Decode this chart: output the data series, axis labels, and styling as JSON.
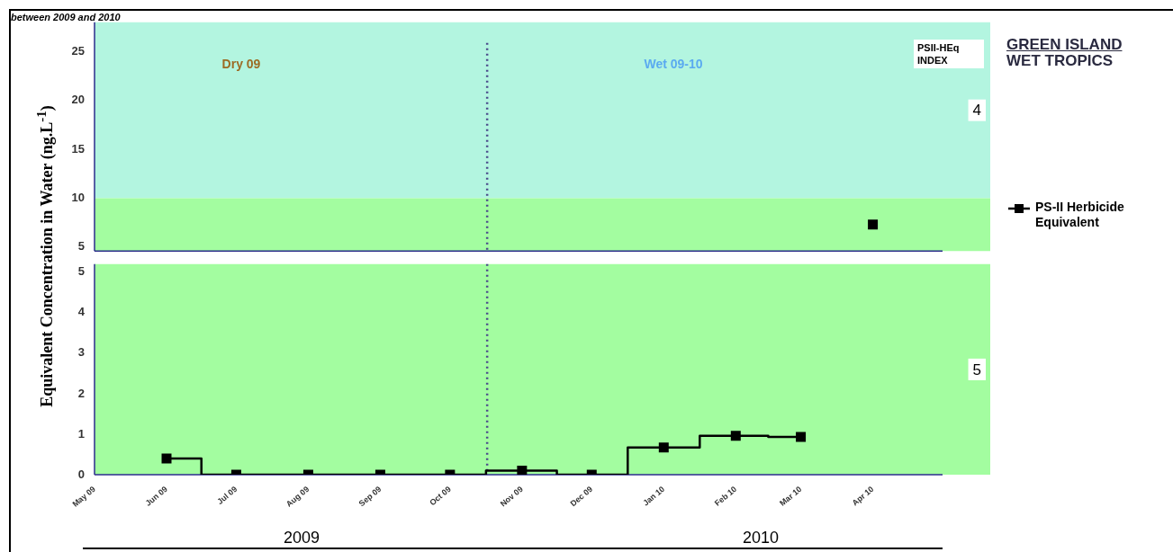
{
  "chart_data": [
    {
      "type": "step",
      "legend": "right",
      "tick_labels": "y",
      "marker": "square",
      "grid": false,
      "series": [
        {
          "name": "PS-II Herbicide Equivalent",
          "color": "#000000",
          "x": [
            "2010-04"
          ],
          "values": [
            7.3
          ]
        }
      ],
      "xlim": [
        "2009-05",
        "2010-05"
      ],
      "ylim": [
        4.6,
        28
      ],
      "yticks": [
        5,
        10,
        15,
        20,
        25
      ],
      "bands": [
        {
          "axis": "y",
          "from": 10,
          "to": 28,
          "label": "4",
          "color": "#b3f5e0"
        },
        {
          "axis": "y",
          "from": 4.6,
          "to": 10,
          "label": null,
          "color": "#a3fda0"
        }
      ],
      "ref_lines": [
        {
          "axis": "x",
          "value": "2009-10-17",
          "label": null,
          "color": "#4a4a8a",
          "line_style": "dotted"
        }
      ],
      "annotations": [
        "Dry 09",
        "Wet 09-10",
        "PSII-HEq INDEX",
        "between 2009 and 2010",
        "GREEN ISLAND",
        "WET TROPICS"
      ]
    },
    {
      "type": "step",
      "ylabel": "Equivalent Concentration in Water (ng.L$^{-1}$)",
      "marker": "square",
      "grid": false,
      "x": [
        "2009-06",
        "2009-07",
        "2009-08",
        "2009-09",
        "2009-10",
        "2009-11",
        "2009-12",
        "2010-01",
        "2010-02",
        "2010-03"
      ],
      "series": [
        {
          "color": "#000000",
          "values": [
            0.4,
            0,
            0,
            0,
            0,
            0.1,
            0,
            0.67,
            0.96,
            0.93
          ]
        }
      ],
      "xlim": [
        "2009-05",
        "2010-05"
      ],
      "xticks": [
        {
          "value": "2009-05",
          "label": "May 09"
        },
        {
          "value": "2009-06",
          "label": "Jun 09"
        },
        {
          "value": "2009-07",
          "label": "Jul 09"
        },
        {
          "value": "2009-08",
          "label": "Aug 09"
        },
        {
          "value": "2009-09",
          "label": "Sep 09"
        },
        {
          "value": "2009-10",
          "label": "Oct 09"
        },
        {
          "value": "2009-11",
          "label": "Nov 09"
        },
        {
          "value": "2009-12",
          "label": "Dec 09"
        },
        {
          "value": "2010-01",
          "label": "Jan 10"
        },
        {
          "value": "2010-02",
          "label": "Feb 10"
        },
        {
          "value": "2010-03",
          "label": "Mar 10"
        },
        {
          "value": "2010-04",
          "label": "Apr 10"
        }
      ],
      "ylim": [
        0,
        5.2
      ],
      "yticks": [
        0,
        1,
        2,
        3,
        4,
        5
      ],
      "bands": [
        {
          "axis": "y",
          "from": 0,
          "to": 5.2,
          "label": "5",
          "color": "#a3fda0"
        }
      ],
      "ref_lines": [
        {
          "axis": "x",
          "value": "2009-10-17",
          "label": null,
          "color": "#4a4a8a",
          "line_style": "dotted"
        }
      ],
      "annotations": [
        "2009",
        "2010"
      ]
    }
  ]
}
